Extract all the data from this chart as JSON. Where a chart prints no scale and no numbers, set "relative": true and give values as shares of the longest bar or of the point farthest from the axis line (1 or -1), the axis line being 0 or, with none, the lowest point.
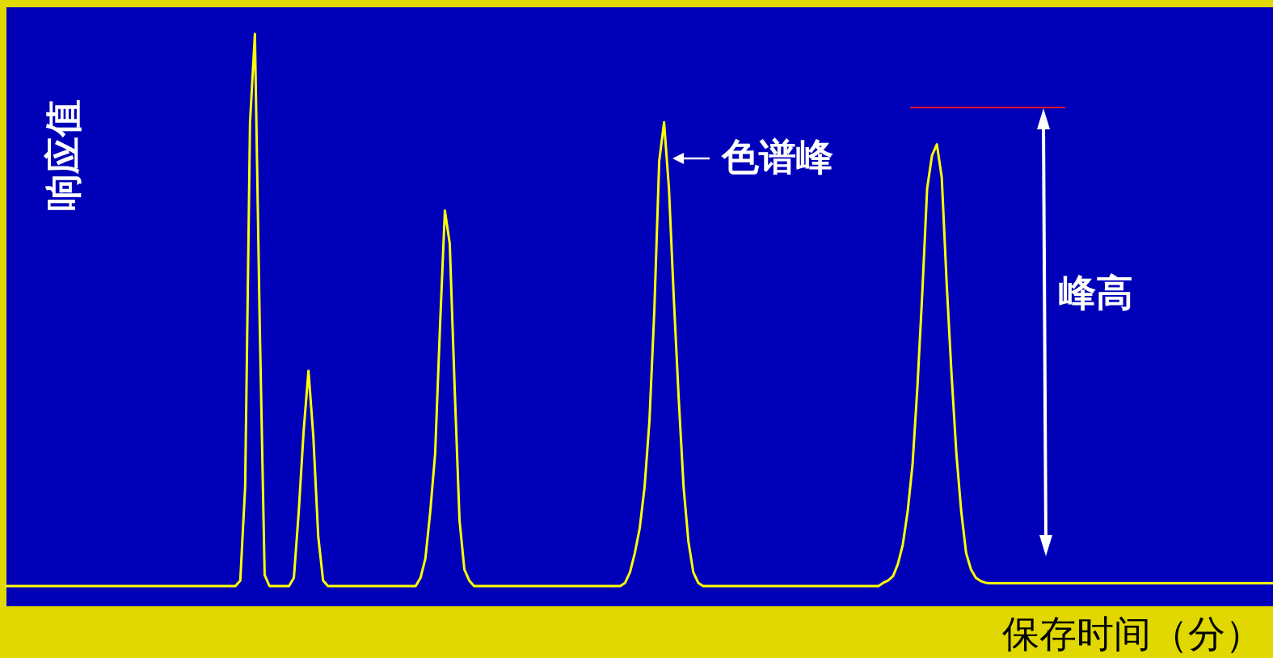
{
  "chart_data": {
    "type": "line",
    "relative": true,
    "xlabel": "保存时间（分）",
    "ylabel": "响应值",
    "color": "#ffff00",
    "annotations": [
      "色谱峰",
      "峰高"
    ],
    "categories": [
      null,
      null,
      null,
      null,
      null,
      null,
      null,
      null,
      null,
      null,
      null,
      null,
      null,
      null,
      null,
      null,
      null,
      null,
      null,
      null,
      null,
      null,
      null,
      null,
      null,
      null,
      null,
      null,
      null,
      null,
      null,
      null,
      null,
      null,
      null,
      null,
      null,
      null,
      null,
      null,
      null,
      null,
      null,
      null,
      null,
      null,
      null,
      null,
      null,
      null,
      null,
      null,
      null,
      null,
      null,
      null,
      null,
      null,
      null,
      null,
      null,
      null,
      null,
      null,
      null,
      null,
      null,
      null,
      null,
      null,
      null,
      null,
      null,
      null,
      null,
      null,
      null,
      null,
      null,
      null,
      null,
      null,
      null,
      null,
      null,
      null,
      null,
      null,
      null,
      null,
      null,
      null,
      null,
      null,
      null,
      null,
      null,
      null,
      null,
      null,
      null,
      null,
      null,
      null,
      null,
      null,
      null,
      null,
      null,
      null,
      null,
      null,
      null,
      null,
      null,
      null,
      null,
      null,
      null,
      null,
      null,
      null,
      null,
      null,
      null,
      null,
      null,
      null,
      null,
      null,
      null,
      null,
      null,
      null,
      null,
      null,
      null,
      null,
      null,
      null,
      null,
      null,
      null,
      null,
      null,
      null,
      null,
      null,
      null,
      null,
      null,
      null,
      null,
      null,
      null,
      null,
      null,
      null,
      null,
      null,
      null,
      null,
      null,
      null,
      null,
      null,
      null,
      null,
      null,
      null,
      null,
      null,
      null,
      null,
      null,
      null,
      null,
      null,
      null,
      null,
      null,
      null,
      null,
      null,
      null,
      null,
      null,
      null,
      null,
      null,
      null,
      null,
      null,
      null,
      null,
      null,
      null,
      null,
      null,
      null,
      null,
      null,
      null,
      null,
      null,
      null,
      null,
      null,
      null,
      null,
      null,
      null,
      null,
      null,
      null,
      null,
      null,
      null,
      null,
      null,
      null,
      null,
      null,
      null,
      null,
      null,
      null,
      null,
      null,
      null,
      null,
      null,
      null,
      null,
      null,
      null,
      null,
      null,
      null,
      null,
      null,
      null,
      null,
      null,
      null,
      null,
      null,
      null,
      null,
      null,
      null,
      null,
      null,
      null,
      null,
      null,
      null,
      null,
      null,
      null,
      null
    ],
    "values": [
      0,
      0,
      0,
      0,
      0,
      0,
      0,
      0,
      0,
      0,
      0,
      0,
      0,
      0,
      0,
      0,
      0,
      0,
      0,
      0,
      0,
      0,
      0,
      0,
      0,
      0,
      0,
      0,
      0,
      0,
      0,
      0,
      0,
      0,
      0,
      0,
      0,
      0,
      0,
      0,
      0,
      0,
      0,
      0,
      0,
      0,
      0,
      0,
      0.01,
      0.18,
      0.84,
      1,
      0.47,
      0.02,
      0,
      0,
      0,
      0,
      0,
      0.015,
      0.135,
      0.28,
      0.39,
      0.27,
      0.09,
      0.01,
      0,
      0,
      0,
      0,
      0,
      0,
      0,
      0,
      0,
      0,
      0,
      0,
      0,
      0,
      0,
      0,
      0,
      0,
      0,
      0.015,
      0.05,
      0.135,
      0.24,
      0.47,
      0.68,
      0.62,
      0.36,
      0.12,
      0.03,
      0.01,
      0,
      0,
      0,
      0,
      0,
      0,
      0,
      0,
      0,
      0,
      0,
      0,
      0,
      0,
      0,
      0,
      0,
      0,
      0,
      0,
      0,
      0,
      0,
      0,
      0,
      0,
      0,
      0,
      0,
      0,
      0,
      0.006,
      0.025,
      0.06,
      0.105,
      0.18,
      0.3,
      0.5,
      0.77,
      0.84,
      0.72,
      0.52,
      0.34,
      0.18,
      0.08,
      0.025,
      0.006,
      0,
      0,
      0,
      0,
      0,
      0,
      0,
      0,
      0,
      0,
      0,
      0,
      0,
      0,
      0,
      0,
      0,
      0,
      0,
      0,
      0,
      0,
      0,
      0,
      0,
      0,
      0,
      0,
      0,
      0,
      0,
      0,
      0,
      0,
      0,
      0,
      0,
      0.006,
      0.01,
      0.018,
      0.04,
      0.075,
      0.135,
      0.22,
      0.36,
      0.53,
      0.72,
      0.78,
      0.8,
      0.74,
      0.55,
      0.385,
      0.24,
      0.135,
      0.06,
      0.03,
      0.015,
      0.009,
      0.006,
      0.005,
      0.005,
      0.005,
      0.005,
      0.005,
      0.005,
      0.005,
      0.005,
      0.005,
      0.005,
      0.005,
      0.005,
      0.005,
      0.005,
      0.005,
      0.005,
      0.005,
      0.005,
      0.005,
      0.005,
      0.005,
      0.005,
      0.005,
      0.005,
      0.005,
      0.005,
      0.005,
      0.005,
      0.005,
      0.005,
      0.005,
      0.005,
      0.005,
      0.005,
      0.005,
      0.005,
      0.005,
      0.005,
      0.005,
      0.005,
      0.005,
      0.005,
      0.005,
      0.005,
      0.005,
      0.005,
      0.005,
      0.005,
      0.005,
      0.005,
      0.005,
      0.005,
      0.005,
      0.005,
      0.005,
      0.005,
      0.005,
      0.005,
      0.005
    ]
  }
}
